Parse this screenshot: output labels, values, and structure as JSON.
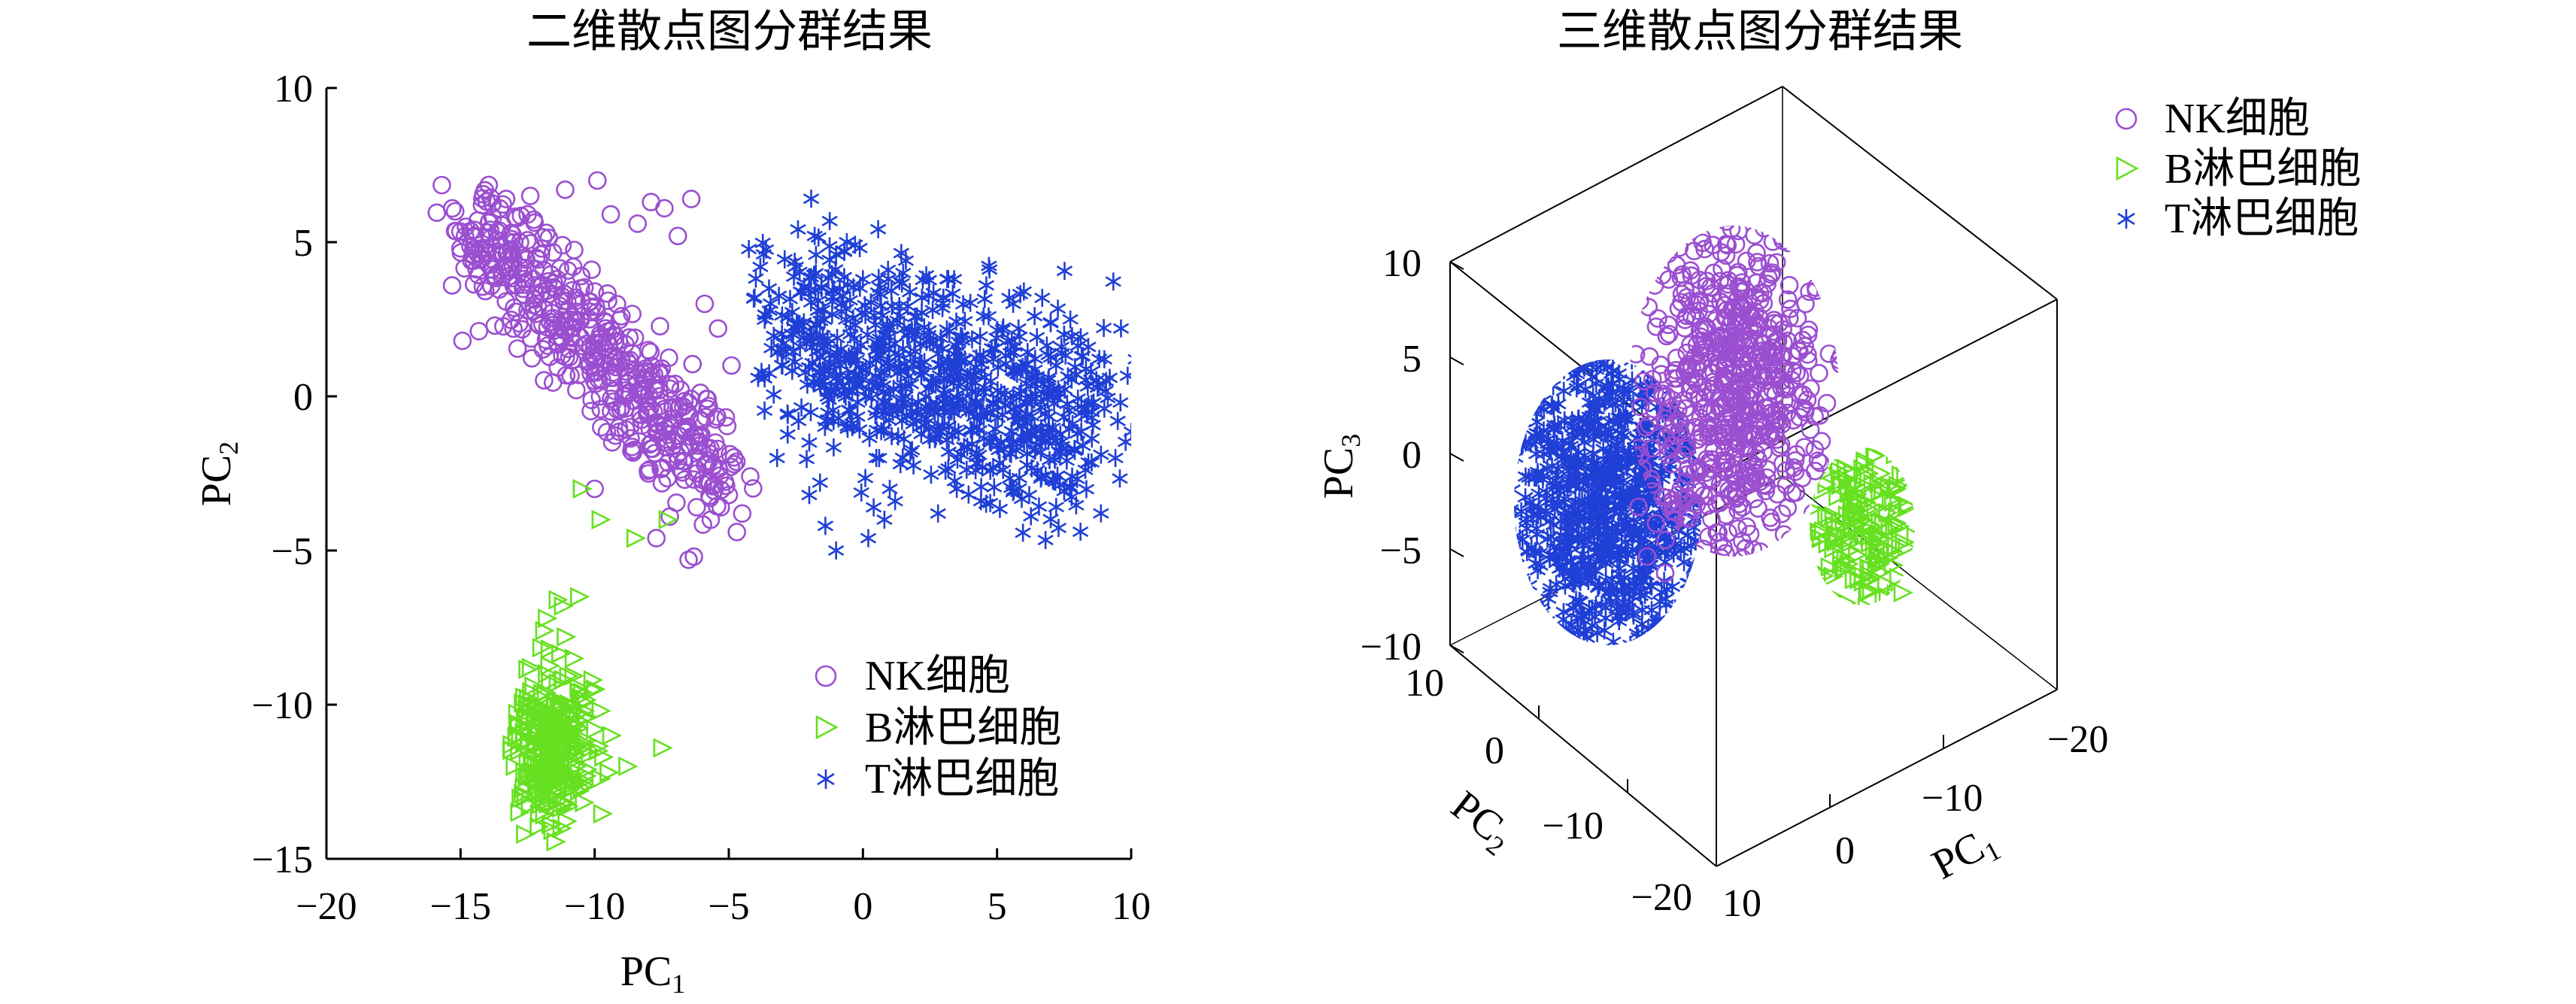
{
  "chart_data": [
    {
      "type": "scatter",
      "title": "二维散点图分群结果",
      "xlabel": "PC",
      "xlabel_sub": "1",
      "ylabel": "PC",
      "ylabel_sub": "2",
      "xlim": [
        -20,
        10
      ],
      "ylim": [
        -15,
        10
      ],
      "xticks": [
        -20,
        -15,
        -10,
        -5,
        0,
        5,
        10
      ],
      "yticks": [
        -15,
        -10,
        -5,
        0,
        5,
        10
      ],
      "xtick_labels": [
        "−20",
        "−15",
        "−10",
        "−5",
        "0",
        "5",
        "10"
      ],
      "ytick_labels": [
        "−15",
        "−10",
        "−5",
        "0",
        "5",
        "10"
      ],
      "legend_position": "bottom-right",
      "series": [
        {
          "name": "NK细胞",
          "marker": "circle",
          "color": "#9b4fd0",
          "x": [
            -15.2,
            -14.8,
            -14.5,
            -14.2,
            -14.0,
            -13.8,
            -13.5,
            -13.3,
            -13.0,
            -12.8,
            -12.5,
            -12.3,
            -12.0,
            -11.8,
            -11.5,
            -11.2,
            -11.0,
            -10.8,
            -10.5,
            -10.2,
            -10.0,
            -9.8,
            -9.5,
            -9.2,
            -9.0,
            -8.8,
            -8.5,
            -8.2,
            -8.0,
            -7.8,
            -7.5,
            -7.2,
            -7.0,
            -6.8,
            -6.5,
            -6.2,
            -6.0,
            -5.8,
            -5.5,
            -5.0,
            -4.8,
            -4.5,
            -4.2,
            -13.9,
            -13.1,
            -12.6,
            -11.9,
            -11.4,
            -10.7,
            -10.1,
            -9.6,
            -9.1,
            -8.6,
            -8.1,
            -7.6,
            -7.1,
            -6.6,
            -6.1,
            -5.6,
            -5.1,
            -14.6,
            -13.7,
            -12.9,
            -12.2,
            -11.6,
            -10.9,
            -10.3,
            -9.7,
            -9.3,
            -8.7,
            -8.3,
            -7.7,
            -7.3,
            -6.7,
            -6.3,
            -5.7,
            -5.3,
            -4.7,
            -12.4,
            -11.1,
            -9.9,
            -9.4,
            -8.4,
            -7.9,
            -7.4,
            -6.9,
            -6.4,
            -5.9,
            -5.4,
            -4.9,
            -6.3,
            -7.7,
            -10.0,
            -8.0,
            -6.5,
            -7.2
          ],
          "y": [
            6.0,
            5.5,
            5.2,
            6.2,
            4.8,
            5.8,
            4.9,
            6.4,
            5.0,
            4.2,
            5.9,
            3.8,
            4.6,
            5.3,
            3.5,
            4.9,
            2.8,
            4.2,
            3.9,
            2.5,
            3.4,
            2.0,
            3.1,
            1.2,
            2.6,
            0.8,
            1.9,
            0.2,
            1.5,
            -0.5,
            0.9,
            -1.0,
            0.4,
            -1.8,
            -0.2,
            -2.5,
            -0.8,
            -2.8,
            -1.5,
            -3.2,
            -2.2,
            -3.8,
            -2.6,
            5.4,
            5.1,
            4.5,
            4.1,
            3.8,
            3.2,
            2.9,
            2.4,
            1.8,
            1.4,
            0.9,
            0.2,
            -0.4,
            -1.1,
            -1.6,
            -2.3,
            -2.9,
            4.4,
            3.9,
            3.6,
            3.3,
            2.7,
            2.2,
            1.7,
            1.1,
            0.6,
            0.1,
            -0.6,
            -0.9,
            -1.4,
            -2.1,
            -2.7,
            -3.3,
            -3.6,
            -4.4,
            6.5,
            6.7,
            7.0,
            5.9,
            5.6,
            6.3,
            6.1,
            5.2,
            6.4,
            3.0,
            2.2,
            1.0,
            -5.2,
            -4.6,
            -3.0,
            -2.5,
            -5.3,
            -3.9
          ]
        },
        {
          "name": "B淋巴细胞",
          "marker": "triangle",
          "color": "#66e020",
          "x": [
            -13.0,
            -12.8,
            -12.6,
            -12.4,
            -12.2,
            -12.0,
            -11.8,
            -11.6,
            -11.4,
            -11.2,
            -11.0,
            -10.8,
            -10.6,
            -10.4,
            -10.2,
            -10.0,
            -9.8,
            -12.9,
            -12.5,
            -12.1,
            -11.7,
            -11.3,
            -10.9,
            -10.5,
            -10.1,
            -9.7,
            -12.7,
            -12.3,
            -11.9,
            -11.5,
            -11.1,
            -10.7,
            -10.3,
            -9.9,
            -9.5,
            -12.4,
            -11.8,
            -11.2,
            -10.6,
            -10.0,
            -9.4,
            -8.8,
            -7.5,
            -11.5,
            -11.0,
            -10.5,
            -11.9,
            -11.3,
            -10.8,
            -10.3,
            -9.8,
            -10.5,
            -9.8,
            -8.5,
            -7.3,
            -10.6,
            -11.4
          ],
          "y": [
            -12.0,
            -11.0,
            -13.0,
            -10.0,
            -12.5,
            -11.5,
            -9.0,
            -13.2,
            -10.5,
            -12.2,
            -11.0,
            -8.5,
            -12.8,
            -10.2,
            -11.6,
            -9.5,
            -12.4,
            -10.6,
            -9.8,
            -11.8,
            -8.2,
            -12.6,
            -10.8,
            -11.2,
            -9.2,
            -11.7,
            -12.9,
            -9.4,
            -11.1,
            -10.0,
            -7.8,
            -12.0,
            -10.4,
            -11.5,
            -12.2,
            -8.8,
            -7.2,
            -6.8,
            -9.6,
            -10.8,
            -11.0,
            -12.0,
            -11.4,
            -12.3,
            -13.3,
            -12.7,
            -7.6,
            -9.9,
            -11.3,
            -12.1,
            -10.2,
            -3.0,
            -4.0,
            -4.6,
            -4.0,
            -6.5,
            -6.6
          ]
        },
        {
          "name": "T淋巴细胞",
          "marker": "asterisk",
          "color": "#1f3fd6",
          "x": [
            -3.5,
            -3.0,
            -2.5,
            -2.0,
            -1.5,
            -1.0,
            -0.5,
            0.0,
            0.5,
            1.0,
            1.5,
            2.0,
            2.5,
            3.0,
            3.5,
            4.0,
            4.5,
            5.0,
            5.5,
            6.0,
            6.5,
            7.0,
            7.5,
            8.0,
            8.5,
            9.0,
            9.5,
            -2.8,
            -2.2,
            -1.6,
            -0.8,
            -0.2,
            0.6,
            1.2,
            1.8,
            2.6,
            3.2,
            3.8,
            4.6,
            5.2,
            5.8,
            6.6,
            7.2,
            7.8,
            8.6,
            9.2,
            -1.2,
            -0.4,
            0.4,
            1.4,
            2.2,
            3.0,
            4.2,
            5.4,
            6.2,
            7.4,
            8.2,
            9.0,
            9.6,
            -3.2,
            -2.6,
            -1.4,
            0.2,
            1.0,
            2.8,
            4.4,
            6.4,
            7.6,
            8.8,
            -2.0,
            -1.8,
            -0.6,
            1.6,
            3.4,
            5.6,
            7.0,
            8.4,
            -2.4,
            -1.0,
            0.8
          ],
          "y": [
            3.5,
            1.0,
            4.2,
            -1.5,
            2.8,
            4.6,
            0.5,
            3.8,
            -2.0,
            2.2,
            4.0,
            -0.8,
            1.8,
            3.2,
            -3.0,
            0.6,
            2.6,
            -1.6,
            1.4,
            3.4,
            -2.4,
            0.2,
            2.0,
            -1.2,
            0.8,
            -0.4,
            -0.8,
            -0.6,
            2.4,
            -2.8,
            3.0,
            -0.2,
            1.6,
            -3.4,
            0.4,
            2.8,
            -1.8,
            1.2,
            3.6,
            -0.6,
            2.2,
            -1.4,
            1.0,
            -2.6,
            -0.2,
            0.6,
            0.2,
            -1.0,
            -3.6,
            -2.2,
            3.2,
            -0.4,
            -2.4,
            1.8,
            -3.2,
            1.6,
            -1.6,
            1.2,
            -0.2,
            -2.0,
            2.0,
            -4.2,
            -4.6,
            -3.0,
            -3.8,
            -3.4,
            2.6,
            -1.8,
            0.4,
            -3.2,
            5.2,
            5.0,
            4.4,
            3.8,
            3.0,
            2.4,
            1.6,
            -0.8,
            -5.0,
            -4.0
          ]
        }
      ]
    },
    {
      "type": "scatter",
      "title": "三维散点图分群结果",
      "xlabel": "PC",
      "xlabel_sub": "1",
      "ylabel": "PC",
      "ylabel_sub": "2",
      "zlabel": "PC",
      "zlabel_sub": "3",
      "xlim": [
        -20,
        10
      ],
      "ylim": [
        -20,
        10
      ],
      "zlim": [
        -10,
        10
      ],
      "xtick_labels": [
        "−20",
        "−10",
        "0",
        "10"
      ],
      "ytick_labels": [
        "10",
        "0",
        "−10",
        "−20"
      ],
      "ztick_labels": [
        "10",
        "5",
        "0",
        "−5",
        "−10"
      ],
      "legend_position": "top-right",
      "series": [
        {
          "name": "NK细胞",
          "marker": "circle",
          "color": "#9b4fd0",
          "x": [
            -1.5,
            -2.0,
            -1.0,
            -2.5,
            -0.5,
            -1.8,
            -1.2,
            -2.2,
            -0.8,
            -1.6,
            -1.4,
            -2.4,
            -0.6,
            -1.0,
            -2.0,
            -1.8,
            -1.2,
            -0.9,
            -2.6,
            -3.0,
            -4.0,
            -2.8,
            -5.0
          ],
          "y": [
            8.0,
            8.5,
            7.5,
            9.0,
            7.0,
            8.2,
            7.8,
            8.8,
            7.2,
            8.4,
            8.0,
            9.2,
            7.4,
            7.6,
            8.6,
            8.0,
            7.8,
            7.0,
            -7.0,
            -6.0,
            -8.0,
            -9.0,
            -7.5
          ],
          "z": [
            9.0,
            8.0,
            7.0,
            6.0,
            5.0,
            4.0,
            3.0,
            2.0,
            1.0,
            0.0,
            -1.0,
            -2.0,
            10.0,
            9.5,
            6.5,
            3.5,
            0.5,
            -2.5,
            -5.0,
            -7.0,
            -6.0,
            -4.0,
            -3.0
          ]
        },
        {
          "name": "B淋巴细胞",
          "marker": "triangle",
          "color": "#66e020",
          "x": [
            -12.0,
            -12.5,
            -11.5,
            -13.0,
            -11.0,
            -12.2,
            -11.8,
            -12.8,
            -11.2,
            -12.6,
            -11.6,
            -12.4,
            -11.4,
            -12.0,
            -14.0,
            -10.0
          ],
          "y": [
            -10.0,
            -10.5,
            -9.5,
            -11.0,
            -9.0,
            -10.2,
            -9.8,
            -10.8,
            -9.2,
            -10.6,
            -9.6,
            -10.4,
            -9.4,
            -10.0,
            -9.0,
            -5.0
          ],
          "z": [
            -4.0,
            -3.0,
            -5.0,
            -2.0,
            -6.0,
            -3.5,
            -4.5,
            -2.5,
            -5.5,
            -1.5,
            -6.5,
            -3.0,
            -4.0,
            -7.0,
            -6.0,
            -8.0
          ]
        },
        {
          "name": "T淋巴细胞",
          "marker": "asterisk",
          "color": "#1f3fd6",
          "x": [
            -2.0,
            -1.5,
            -2.5,
            -1.0,
            -3.0,
            -2.2,
            -1.8,
            -2.8,
            -1.2,
            -2.6,
            -1.4,
            -2.4,
            -1.6,
            -2.0,
            -3.2,
            -0.8,
            -2.0,
            -1.0,
            -3.0,
            -2.5
          ],
          "y": [
            -8.0,
            -8.5,
            -7.5,
            -9.0,
            -7.0,
            -8.2,
            -7.8,
            -8.8,
            -7.2,
            -8.6,
            -7.4,
            -8.4,
            -7.6,
            -8.0,
            -9.2,
            -6.8,
            -6.0,
            -10.0,
            -9.5,
            -6.5
          ],
          "z": [
            2.0,
            1.0,
            0.0,
            -1.0,
            -2.0,
            -3.0,
            -4.0,
            -5.0,
            -6.0,
            -7.0,
            1.5,
            -0.5,
            -2.5,
            -4.5,
            -6.5,
            3.0,
            4.0,
            -8.0,
            -1.5,
            5.0
          ]
        }
      ]
    }
  ]
}
